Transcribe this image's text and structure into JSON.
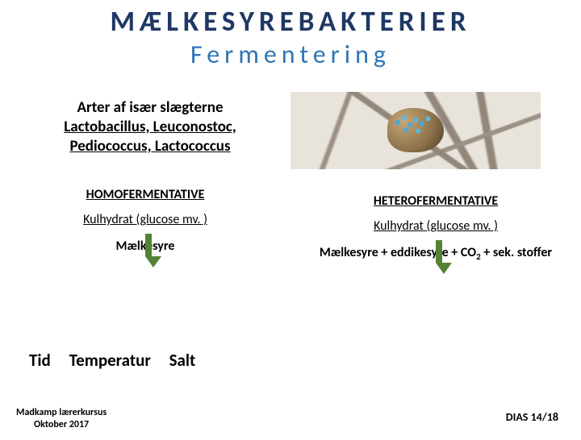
{
  "title_main": "MÆLKESYREBAKTERIER",
  "title_sub": "Fermentering",
  "genera": {
    "line1": "Arter af især slægterne",
    "line2": "Lactobacillus, Leuconostoc,",
    "line3": "Pediococcus, Lactococcus"
  },
  "left": {
    "heading": "HOMOFERMENTATIVE",
    "substrate": "Kulhydrat (glucose mv. )",
    "product": "Mælkesyre",
    "arrow_color": "#548235"
  },
  "right": {
    "heading": "HETEROFERMENTATIVE",
    "substrate": "Kulhydrat (glucose mv. )",
    "product_pre": "Mælkesyre + eddikesyre + CO",
    "product_sub": "2",
    "product_post": " + sek. stoffer",
    "arrow_color": "#548235"
  },
  "factors": {
    "a": "Tid",
    "b": "Temperatur",
    "c": "Salt"
  },
  "footer_left_line1": "Madkamp lærerkursus",
  "footer_left_line2": "Oktober 2017",
  "footer_right": "DIAS 14/18",
  "colors": {
    "title_main": "#1f3864",
    "title_sub": "#2e74b5",
    "text": "#000000",
    "bg": "#ffffff"
  }
}
